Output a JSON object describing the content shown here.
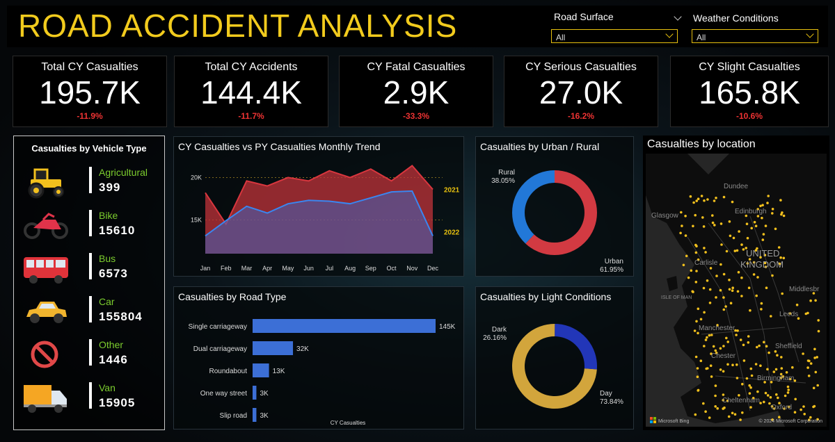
{
  "header": {
    "title": "ROAD ACCIDENT ANALYSIS",
    "filters": [
      {
        "label": "Road Surface",
        "value": "All"
      },
      {
        "label": "Weather Conditions",
        "value": "All"
      }
    ]
  },
  "kpis": [
    {
      "label": "Total CY Casualties",
      "value": "195.7K",
      "delta": "-11.9%"
    },
    {
      "label": "Total CY Accidents",
      "value": "144.4K",
      "delta": "-11.7%"
    },
    {
      "label": "CY Fatal Casualties",
      "value": "2.9K",
      "delta": "-33.3%"
    },
    {
      "label": "CY Serious Casualties",
      "value": "27.0K",
      "delta": "-16.2%"
    },
    {
      "label": "CY Slight Casualties",
      "value": "165.8K",
      "delta": "-10.6%"
    }
  ],
  "vehicle_panel": {
    "title": "Casualties by Vehicle Type",
    "items": [
      {
        "name": "Agricultural",
        "value": "399",
        "icon": "tractor-icon"
      },
      {
        "name": "Bike",
        "value": "15610",
        "icon": "motorbike-icon"
      },
      {
        "name": "Bus",
        "value": "6573",
        "icon": "bus-icon"
      },
      {
        "name": "Car",
        "value": "155804",
        "icon": "car-icon"
      },
      {
        "name": "Other",
        "value": "1446",
        "icon": "prohibited-icon"
      },
      {
        "name": "Van",
        "value": "15905",
        "icon": "van-icon"
      }
    ]
  },
  "chart_data": [
    {
      "type": "area",
      "title": "CY Casualties vs PY Casualties Monthly Trend",
      "categories": [
        "Jan",
        "Feb",
        "Mar",
        "Apr",
        "May",
        "Jun",
        "Jul",
        "Aug",
        "Sep",
        "Oct",
        "Nov",
        "Dec"
      ],
      "y_ticks": [
        "20K",
        "15K"
      ],
      "ylim": [
        11000,
        22500
      ],
      "series": [
        {
          "name": "2021",
          "color": "#c0333a",
          "values": [
            18200,
            14500,
            19600,
            19000,
            20000,
            19600,
            20800,
            20000,
            21000,
            19600,
            21400,
            18600
          ]
        },
        {
          "name": "2022",
          "color": "#2f6fdc",
          "values": [
            13100,
            14900,
            16600,
            15800,
            16900,
            17300,
            17200,
            16900,
            17600,
            18300,
            18400,
            13100
          ]
        }
      ]
    },
    {
      "type": "donut",
      "title": "Casualties by Urban / Rural",
      "slices": [
        {
          "label": "Urban",
          "percent": "61.95%",
          "value": 61.95,
          "color": "#d23a42"
        },
        {
          "label": "Rural",
          "percent": "38.05%",
          "value": 38.05,
          "color": "#2278d8"
        }
      ]
    },
    {
      "type": "bar",
      "orientation": "horizontal",
      "title": "Casualties by Road Type",
      "xlabel": "CY Casualties",
      "categories": [
        "Single carriageway",
        "Dual carriageway",
        "Roundabout",
        "One way street",
        "Slip road"
      ],
      "values": [
        145000,
        32000,
        13000,
        3000,
        3000
      ],
      "data_labels": [
        "145K",
        "32K",
        "13K",
        "3K",
        "3K"
      ],
      "color": "#3c6fd6"
    },
    {
      "type": "donut",
      "title": "Casualties by Light Conditions",
      "slices": [
        {
          "label": "Day",
          "percent": "73.84%",
          "value": 73.84,
          "color": "#d2a53c"
        },
        {
          "label": "Dark",
          "percent": "26.16%",
          "value": 26.16,
          "color": "#2236b8"
        }
      ]
    }
  ],
  "map": {
    "title": "Casualties by location",
    "labels": [
      {
        "text": "Dundee"
      },
      {
        "text": "Edinburgh"
      },
      {
        "text": "Glasgow"
      },
      {
        "text": "UNITED",
        "big": true
      },
      {
        "text": "KINGDOM",
        "big": true
      },
      {
        "text": "Carlisle"
      },
      {
        "text": "ISLE OF MAN"
      },
      {
        "text": "Middlesbr"
      },
      {
        "text": "Leeds"
      },
      {
        "text": "Manchester"
      },
      {
        "text": "Sheffield"
      },
      {
        "text": "Chester"
      },
      {
        "text": "Birmingham"
      },
      {
        "text": "Cheltenham"
      },
      {
        "text": "Oxford"
      }
    ],
    "credit_left": "Microsoft Bing",
    "credit_right": "© 2024 Microsoft Corporation"
  }
}
